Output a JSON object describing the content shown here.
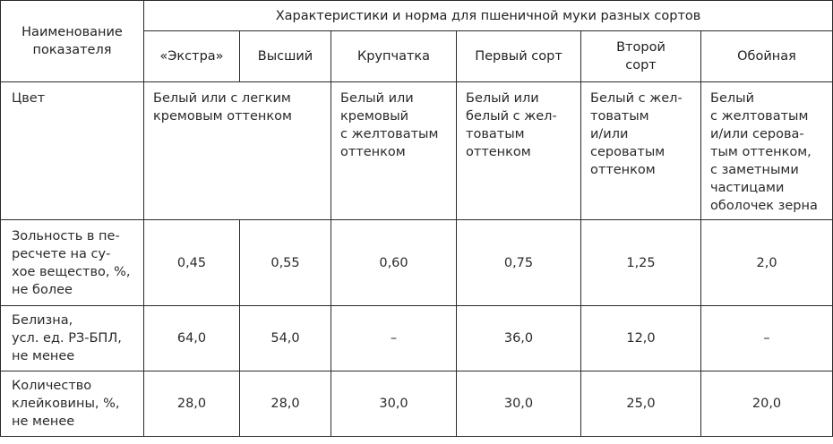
{
  "table": {
    "header_indicator": "Наименование\nпоказателя",
    "header_group": "Характеристики и норма для пшеничной муки разных сортов",
    "grades": [
      "«Экстра»",
      "Высший",
      "Крупчатка",
      "Первый сорт",
      "Второй\nсорт",
      "Обойная"
    ],
    "rows": {
      "color": {
        "label": "Цвет",
        "extra_highest": "Белый или с легким\nкремовым оттенком",
        "krupchatka": "Белый или\nкремовый\nс желтоватым\nоттенком",
        "first": "Белый или\nбелый с жел-\nтоватым\nоттенком",
        "second": "Белый с жел-\nтоватым\nи/или\nсероватым\nоттенком",
        "wholegrain": "Белый\nс желтоватым\nи/или серова-\nтым оттенком,\nс заметными\nчастицами\nоболочек зерна"
      },
      "ash": {
        "label": "Зольность в пе-\nресчете на су-\nхое вещество, %,\nне более",
        "values": [
          "0,45",
          "0,55",
          "0,60",
          "0,75",
          "1,25",
          "2,0"
        ]
      },
      "whiteness": {
        "label": "Белизна,\nусл. ед. РЗ-БПЛ,\nне менее",
        "values": [
          "64,0",
          "54,0",
          "–",
          "36,0",
          "12,0",
          "–"
        ]
      },
      "gluten": {
        "label": "Количество\nклейковины, %,\nне менее",
        "values": [
          "28,0",
          "28,0",
          "30,0",
          "30,0",
          "25,0",
          "20,0"
        ]
      }
    }
  }
}
